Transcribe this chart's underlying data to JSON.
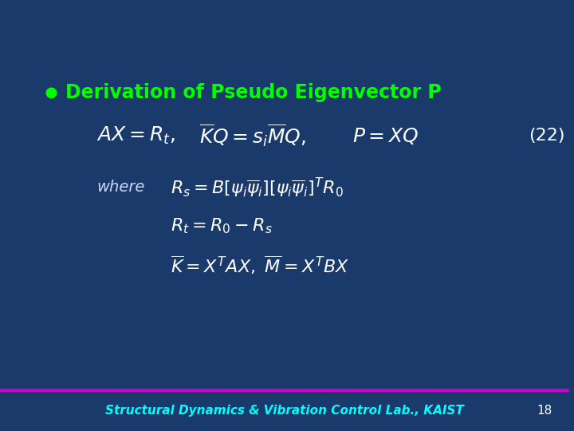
{
  "background_color": "#1a3a6b",
  "title_text": "Derivation of Pseudo Eigenvector P",
  "title_color": "#00ff00",
  "bullet_color": "#00ff00",
  "equation_color": "#ffffff",
  "label_color": "#c8d8f0",
  "footer_text": "Structural Dynamics & Vibration Control Lab., KAIST",
  "footer_color": "#00ffff",
  "page_number": "18",
  "page_color": "#ffffff",
  "line_color": "#cc00cc",
  "title_fontsize": 17,
  "eq_fontsize": 16,
  "where_fontsize": 14,
  "footer_fontsize": 11
}
